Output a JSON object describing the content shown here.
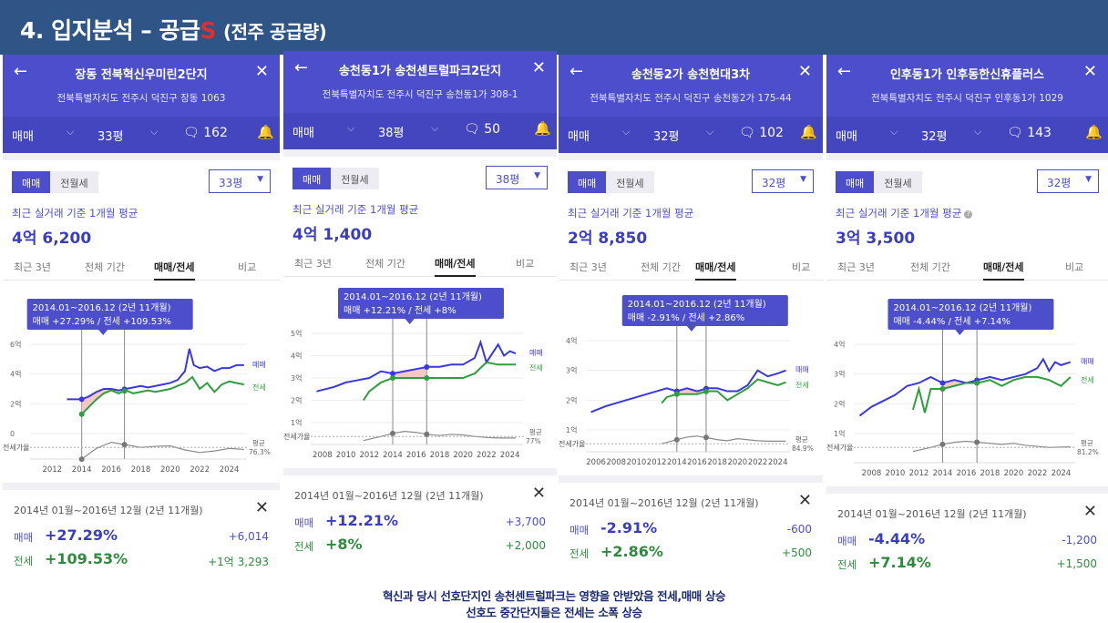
{
  "slide": {
    "title_main": "4. 입지분석 – 공급",
    "title_accent": "S",
    "title_sub": "(전주 공급량)",
    "caption_line1": "혁신과 당시 선호단지인 송천센트럴파크는 영향을 안받았음 전세,매매 상승",
    "caption_line2": "선호도 중간단지들은 전세는 소폭 상승"
  },
  "common": {
    "back_glyph": "←",
    "close_glyph": "✕",
    "trade_filter": "매매",
    "chevron": "⌵",
    "chat_glyph": "🗨",
    "bell_glyph": "🔔",
    "tab_trade": "매매",
    "tab_rent": "전월세",
    "avg_label": "최근 실거래 기준 1개월 평균",
    "avg_info_glyph": "?",
    "period_recent": "최근 3년",
    "period_all": "전체 기간",
    "period_trade_rent": "매매/전세",
    "period_compare": "비교",
    "legend_trade": "매매",
    "legend_rent": "전세",
    "ratio_label": "전세가율",
    "ratio_avg_label": "평균",
    "bottom_period": "2014년 01월~2016년 12월 (2년 11개월)",
    "bottom_trade": "매매",
    "bottom_rent": "전세",
    "tooltip_title": "2014.01~2016.12 (2년 11개월)",
    "select_caret": "▼"
  },
  "panels": [
    {
      "name": "장동 전북혁신우미린2단지",
      "address": "전북특별자치도 전주시 덕진구 장동 1063",
      "size_filter": "33평",
      "comments": "162",
      "size_select": "33평",
      "avg_price": "4억 6,200",
      "tooltip_values": "매매 +27.29%  /  전세 +109.53%",
      "ratio_avg": "76.3%",
      "trade_pct": "+27.29%",
      "trade_amt": "+6,014",
      "rent_pct": "+109.53%",
      "rent_amt": "+1억 3,293"
    },
    {
      "name": "송천동1가 송천센트럴파크2단지",
      "address": "전북특별자치도 전주시 덕진구 송천동1가 308-1",
      "size_filter": "38평",
      "comments": "50",
      "size_select": "38평",
      "avg_price": "4억 1,400",
      "tooltip_values": "매매 +12.21%  /  전세 +8%",
      "ratio_avg": "77%",
      "trade_pct": "+12.21%",
      "trade_amt": "+3,700",
      "rent_pct": "+8%",
      "rent_amt": "+2,000"
    },
    {
      "name": "송천동2가 송천현대3차",
      "address": "전북특별자치도 전주시 덕진구 송천동2가 175-44",
      "size_filter": "32평",
      "comments": "102",
      "size_select": "32평",
      "avg_price": "2억 8,850",
      "tooltip_values": "매매 -2.91%  /  전세 +2.86%",
      "ratio_avg": "84.9%",
      "trade_pct": "-2.91%",
      "trade_amt": "-600",
      "rent_pct": "+2.86%",
      "rent_amt": "+500"
    },
    {
      "name": "인후동1가 인후동한신휴플러스",
      "address": "전북특별자치도 전주시 덕진구 인후동1가 1029",
      "size_filter": "32평",
      "comments": "143",
      "size_select": "32평",
      "avg_price": "3억 3,500",
      "tooltip_values": "매매 -4.44%  /  전세 +7.14%",
      "ratio_avg": "81.2%",
      "trade_pct": "-4.44%",
      "trade_amt": "-1,200",
      "rent_pct": "+7.14%",
      "rent_amt": "+1,500"
    }
  ],
  "chart_data": [
    {
      "type": "line",
      "title": "",
      "x_ticks": [
        "2012",
        "2014",
        "2016",
        "2018",
        "2020",
        "2022",
        "2024"
      ],
      "y_ticks": [
        "6억",
        "4억",
        "2억",
        "0"
      ],
      "ylim": [
        0,
        6
      ],
      "xlim": [
        2010.5,
        2025.2
      ],
      "series": [
        {
          "name": "매매",
          "color": "#3a37e0",
          "x": [
            2013,
            2014,
            2014.5,
            2015,
            2015.5,
            2016,
            2016.5,
            2017,
            2017.5,
            2018,
            2018.5,
            2019,
            2019.5,
            2020,
            2020.5,
            2021,
            2021.3,
            2021.6,
            2022,
            2022.5,
            2023,
            2023.5,
            2024,
            2024.5,
            2025
          ],
          "y": [
            2.3,
            2.3,
            2.5,
            2.8,
            3.0,
            3.0,
            2.9,
            3.0,
            3.1,
            3.2,
            3.1,
            3.2,
            3.3,
            3.4,
            3.6,
            4.2,
            5.7,
            4.6,
            4.4,
            4.5,
            4.2,
            4.4,
            4.4,
            4.6,
            4.6
          ]
        },
        {
          "name": "전세",
          "color": "#2e9e3e",
          "x": [
            2014,
            2014.5,
            2015,
            2015.5,
            2016,
            2016.5,
            2017,
            2017.5,
            2018,
            2018.5,
            2019,
            2019.5,
            2020,
            2020.5,
            2021,
            2021.5,
            2022,
            2022.5,
            2023,
            2023.5,
            2024,
            2024.5,
            2025
          ],
          "y": [
            1.3,
            1.8,
            2.3,
            2.7,
            2.9,
            2.7,
            2.9,
            2.7,
            2.8,
            2.9,
            2.8,
            2.9,
            3.0,
            3.2,
            3.4,
            3.8,
            3.0,
            3.4,
            2.8,
            3.3,
            3.5,
            3.4,
            3.3
          ]
        },
        {
          "name": "전세가율",
          "color": "#8a8a8a",
          "x": [
            2014,
            2015,
            2016,
            2017,
            2018,
            2019,
            2020,
            2021,
            2022,
            2023,
            2024,
            2025
          ],
          "y": [
            0.57,
            0.78,
            0.9,
            0.85,
            0.8,
            0.82,
            0.83,
            0.75,
            0.7,
            0.73,
            0.78,
            0.76
          ]
        }
      ],
      "highlight": [
        2014,
        2016.9
      ]
    },
    {
      "type": "line",
      "title": "",
      "x_ticks": [
        "2008",
        "2010",
        "2012",
        "2014",
        "2016",
        "2018",
        "2020",
        "2022",
        "2024"
      ],
      "y_ticks": [
        "5억",
        "4억",
        "3억",
        "2억",
        "1억"
      ],
      "ylim": [
        1,
        5
      ],
      "xlim": [
        2007,
        2025.2
      ],
      "series": [
        {
          "name": "매매",
          "color": "#3a37e0",
          "x": [
            2007.5,
            2009,
            2010,
            2011,
            2012,
            2013,
            2014,
            2015,
            2016,
            2017,
            2018,
            2019,
            2020,
            2021,
            2021.5,
            2022,
            2023,
            2023.5,
            2024,
            2024.5
          ],
          "y": [
            2.4,
            2.6,
            2.8,
            2.9,
            3.0,
            3.3,
            3.2,
            3.3,
            3.4,
            3.5,
            3.5,
            3.6,
            3.6,
            3.9,
            4.6,
            3.7,
            4.5,
            4.0,
            4.2,
            4.1
          ]
        },
        {
          "name": "전세",
          "color": "#2e9e3e",
          "x": [
            2011.5,
            2012,
            2013,
            2014,
            2015,
            2016,
            2017,
            2018,
            2019,
            2020,
            2021,
            2022,
            2023,
            2024,
            2024.5
          ],
          "y": [
            2.0,
            2.4,
            2.8,
            3.0,
            3.0,
            3.0,
            3.0,
            3.0,
            3.0,
            3.0,
            3.2,
            3.7,
            3.6,
            3.6,
            3.6
          ]
        },
        {
          "name": "전세가율",
          "color": "#8a8a8a",
          "x": [
            2011.5,
            2013,
            2014,
            2015,
            2016,
            2017,
            2018,
            2019,
            2020,
            2021,
            2022,
            2023,
            2024.5
          ],
          "y": [
            0.72,
            0.8,
            0.86,
            0.9,
            0.88,
            0.84,
            0.82,
            0.84,
            0.83,
            0.8,
            0.78,
            0.77,
            0.77
          ]
        }
      ],
      "highlight": [
        2014,
        2016.9
      ]
    },
    {
      "type": "line",
      "title": "",
      "x_ticks": [
        "2006",
        "2008",
        "2010",
        "2012",
        "2014",
        "2016",
        "2018",
        "2020",
        "2022",
        "2024"
      ],
      "y_ticks": [
        "4억",
        "3억",
        "2억",
        "1억"
      ],
      "ylim": [
        1,
        4
      ],
      "xlim": [
        2005,
        2025.2
      ],
      "series": [
        {
          "name": "매매",
          "color": "#3a37e0",
          "x": [
            2005.5,
            2007,
            2008,
            2009,
            2010,
            2011,
            2012,
            2013,
            2014,
            2015,
            2016,
            2017,
            2018,
            2019,
            2020,
            2021,
            2022,
            2023,
            2024,
            2024.8
          ],
          "y": [
            1.6,
            1.8,
            1.9,
            2.0,
            2.1,
            2.2,
            2.3,
            2.4,
            2.3,
            2.4,
            2.3,
            2.4,
            2.4,
            2.3,
            2.3,
            2.5,
            3.0,
            2.8,
            2.9,
            3.0
          ]
        },
        {
          "name": "전세",
          "color": "#2e9e3e",
          "x": [
            2012.5,
            2013,
            2014,
            2015,
            2016,
            2017,
            2018,
            2019,
            2020,
            2021,
            2022,
            2023,
            2024,
            2024.8
          ],
          "y": [
            1.9,
            2.1,
            2.2,
            2.2,
            2.2,
            2.3,
            2.3,
            2.0,
            2.2,
            2.4,
            2.7,
            2.6,
            2.5,
            2.6
          ]
        },
        {
          "name": "전세가율",
          "color": "#8a8a8a",
          "x": [
            2012.5,
            2014,
            2015,
            2016,
            2017,
            2018,
            2019,
            2020,
            2021,
            2022,
            2023,
            2024.8
          ],
          "y": [
            0.8,
            0.88,
            0.93,
            0.95,
            0.92,
            0.88,
            0.86,
            0.9,
            0.88,
            0.86,
            0.85,
            0.85
          ]
        }
      ],
      "highlight": [
        2014,
        2016.9
      ]
    },
    {
      "type": "line",
      "title": "",
      "x_ticks": [
        "2008",
        "2010",
        "2012",
        "2014",
        "2016",
        "2018",
        "2020",
        "2022",
        "2024"
      ],
      "y_ticks": [
        "4억",
        "3억",
        "2억",
        "1억"
      ],
      "ylim": [
        1,
        4
      ],
      "xlim": [
        2006.5,
        2025.2
      ],
      "series": [
        {
          "name": "매매",
          "color": "#3a37e0",
          "x": [
            2007,
            2008,
            2009,
            2010,
            2011,
            2012,
            2013,
            2014,
            2015,
            2016,
            2017,
            2018,
            2019,
            2020,
            2021,
            2022,
            2022.5,
            2023,
            2023.5,
            2024,
            2024.8
          ],
          "y": [
            1.6,
            1.9,
            2.1,
            2.3,
            2.6,
            2.7,
            2.9,
            2.7,
            2.8,
            2.7,
            2.8,
            2.9,
            2.8,
            2.9,
            3.0,
            3.2,
            3.5,
            3.1,
            3.4,
            3.3,
            3.4
          ]
        },
        {
          "name": "전세",
          "color": "#2e9e3e",
          "x": [
            2011.5,
            2012,
            2012.5,
            2013,
            2014,
            2015,
            2016,
            2017,
            2018,
            2019,
            2020,
            2021,
            2022,
            2023,
            2024,
            2024.8
          ],
          "y": [
            1.8,
            2.5,
            1.7,
            2.5,
            2.5,
            2.6,
            2.7,
            2.7,
            2.8,
            2.6,
            2.8,
            2.9,
            2.9,
            2.8,
            2.6,
            2.9
          ]
        },
        {
          "name": "전세가율",
          "color": "#8a8a8a",
          "x": [
            2011.5,
            2013,
            2014,
            2015,
            2016,
            2017,
            2018,
            2019,
            2020,
            2021,
            2022,
            2023,
            2024.8
          ],
          "y": [
            0.72,
            0.8,
            0.86,
            0.9,
            0.92,
            0.9,
            0.88,
            0.86,
            0.88,
            0.84,
            0.82,
            0.8,
            0.81
          ]
        }
      ],
      "highlight": [
        2014,
        2016.9
      ]
    }
  ]
}
